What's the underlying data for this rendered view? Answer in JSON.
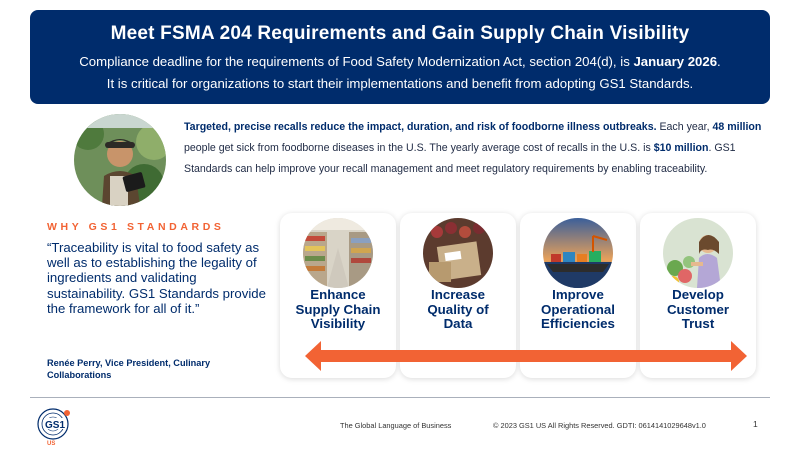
{
  "banner": {
    "title": "Meet FSMA 204 Requirements and Gain Supply Chain Visibility",
    "line1_pre": "Compliance deadline for the requirements of Food Safety Modernization Act, section 204(d), is ",
    "line1_bold": "January 2026",
    "line1_post": ".",
    "line2": "It is critical for organizations to start their implementations and benefit from adopting GS1 Standards."
  },
  "intro": {
    "lead_bold": "Targeted, precise recalls reduce the impact, duration, and risk of foodborne illness outbreaks.",
    "t1": " Each year, ",
    "b1": "48 million",
    "t2": " people get sick from foodborne diseases in the U.S. The yearly average cost of recalls in the U.S. is ",
    "b2": "$10 million",
    "t3": ". GS1 Standards can help improve your recall management and meet regulatory requirements by enabling traceability."
  },
  "why": {
    "label": "WHY GS1 STANDARDS",
    "quote": " “Traceability is vital to food safety as well as to establishing the legality of ingredients and validating sustainability. GS1 Standards provide the framework for all of it.”",
    "attribution": "Renée Perry, Vice President, Culinary Collaborations"
  },
  "cards": [
    {
      "label": "Enhance\nSupply Chain\nVisibility",
      "image": "grocery-aisle"
    },
    {
      "label": "Increase\nQuality of\nData",
      "image": "produce-boxes"
    },
    {
      "label": "Improve\nOperational\nEfficiencies",
      "image": "shipping-port"
    },
    {
      "label": "Develop\nCustomer\nTrust",
      "image": "shopper-produce"
    }
  ],
  "footer": {
    "logo_text": "GS1",
    "logo_sub": "US",
    "tagline": "The Global Language of Business",
    "copyright": "© 2023 GS1 US All Rights Reserved. GDTI: 0614141029648v1.0",
    "page": "1"
  },
  "colors": {
    "navy": "#002c6c",
    "orange": "#f26334"
  }
}
